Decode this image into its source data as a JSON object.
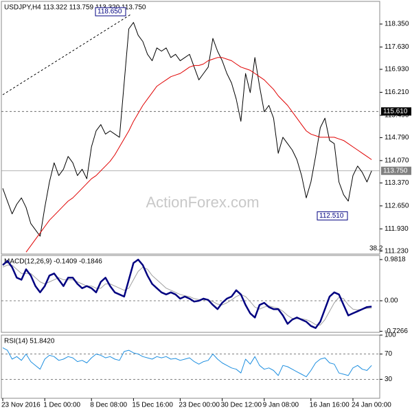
{
  "watermark": "ActionForex.com",
  "chart_data": [
    {
      "type": "line",
      "title": "USDJPY,H4 113.322 113.759 113.320 113.750",
      "ylim": [
        111.14,
        119.06
      ],
      "yticks": [
        {
          "value": 118.35,
          "label": "118.350"
        },
        {
          "value": 117.63,
          "label": "117.630"
        },
        {
          "value": 116.93,
          "label": "116.930"
        },
        {
          "value": 116.21,
          "label": "116.210"
        },
        {
          "value": 115.49,
          "label": "115.490"
        },
        {
          "value": 114.79,
          "label": "114.790"
        },
        {
          "value": 114.07,
          "label": "114.070"
        },
        {
          "value": 113.37,
          "label": "113.370"
        },
        {
          "value": 112.65,
          "label": "112.650"
        },
        {
          "value": 111.93,
          "label": "111.930"
        },
        {
          "value": 111.23,
          "label": "111.230"
        }
      ],
      "levels": [
        {
          "value": 115.61,
          "label": "115.610",
          "color": "#000000"
        },
        {
          "value": 113.75,
          "label": "113.750",
          "color": "#808080"
        }
      ],
      "annotations": [
        {
          "value": 118.65,
          "label": "118.650"
        },
        {
          "value": 112.51,
          "label": "112.510"
        }
      ],
      "fib_label": "38.2",
      "series": [
        {
          "name": "USDJPY",
          "color": "#000000",
          "values": [
            113.2,
            112.8,
            112.4,
            112.7,
            112.9,
            112.6,
            112.1,
            111.9,
            111.7,
            112.6,
            113.4,
            114.0,
            113.6,
            113.8,
            114.2,
            114.0,
            113.6,
            113.8,
            113.5,
            114.5,
            115.0,
            115.2,
            114.9,
            115.0,
            114.9,
            114.8,
            116.5,
            118.2,
            118.4,
            118.0,
            117.8,
            117.4,
            117.2,
            117.6,
            117.5,
            117.6,
            117.3,
            117.4,
            117.2,
            117.3,
            117.4,
            117.0,
            116.6,
            116.8,
            117.0,
            117.9,
            117.5,
            117.2,
            116.8,
            116.5,
            116.0,
            115.3,
            116.8,
            116.2,
            117.3,
            116.4,
            115.6,
            115.8,
            115.4,
            114.3,
            114.8,
            114.6,
            114.4,
            114.1,
            113.6,
            112.9,
            113.4,
            114.2,
            115.1,
            115.4,
            114.7,
            114.6,
            113.4,
            113.0,
            112.8,
            113.6,
            113.9,
            113.7,
            113.4,
            113.75
          ]
        },
        {
          "name": "MA",
          "color": "#e00000",
          "values": [
            null,
            null,
            null,
            null,
            null,
            111.2,
            111.4,
            111.6,
            111.8,
            112.0,
            112.2,
            112.35,
            112.5,
            112.65,
            112.8,
            112.9,
            113.05,
            113.2,
            113.35,
            113.5,
            113.6,
            113.75,
            113.9,
            114.05,
            114.25,
            114.5,
            114.75,
            115.0,
            115.3,
            115.55,
            115.8,
            116.0,
            116.2,
            116.4,
            116.5,
            116.6,
            116.7,
            116.75,
            116.8,
            116.9,
            117.0,
            117.05,
            117.05,
            117.1,
            117.2,
            117.25,
            117.3,
            117.3,
            117.25,
            117.2,
            117.1,
            117.0,
            116.95,
            116.9,
            116.8,
            116.7,
            116.6,
            116.45,
            116.3,
            116.1,
            115.95,
            115.8,
            115.6,
            115.4,
            115.2,
            115.0,
            114.9,
            114.85,
            114.8,
            114.8,
            114.8,
            114.8,
            114.75,
            114.7,
            114.6,
            114.5,
            114.4,
            114.3,
            114.2,
            114.1
          ]
        }
      ]
    },
    {
      "type": "line",
      "title": "MACD(12,26,9) -0.1409 -0.1846",
      "ylim": [
        -0.753,
        1.08
      ],
      "yticks": [
        0.9818,
        {
          "value": 0,
          "label": "0.00"
        },
        -0.7266
      ],
      "levels": [
        0
      ],
      "series": [
        {
          "name": "Signal",
          "color": "#a0a0a0",
          "values": [
            0.8,
            0.85,
            0.85,
            0.75,
            0.65,
            0.65,
            0.65,
            0.55,
            0.45,
            0.4,
            0.45,
            0.5,
            0.55,
            0.5,
            0.5,
            0.5,
            0.45,
            0.4,
            0.35,
            0.35,
            0.3,
            0.3,
            0.4,
            0.4,
            0.35,
            0.3,
            0.25,
            0.3,
            0.5,
            0.7,
            0.8,
            0.75,
            0.6,
            0.5,
            0.4,
            0.3,
            0.25,
            0.2,
            0.15,
            0.12,
            0.1,
            0.05,
            0.03,
            0.02,
            0.02,
            -0.02,
            -0.08,
            -0.1,
            -0.05,
            0.02,
            0.1,
            0.15,
            0.1,
            -0.02,
            -0.15,
            -0.2,
            -0.15,
            -0.12,
            -0.15,
            -0.18,
            -0.25,
            -0.35,
            -0.42,
            -0.43,
            -0.43,
            -0.45,
            -0.5,
            -0.57,
            -0.58,
            -0.45,
            -0.25,
            -0.05,
            0.08,
            0.05,
            -0.1,
            -0.2,
            -0.22,
            -0.2,
            -0.18,
            -0.18
          ]
        },
        {
          "name": "MACD",
          "color": "#000080",
          "values": [
            0.85,
            0.95,
            0.8,
            0.55,
            0.5,
            0.75,
            0.6,
            0.35,
            0.2,
            0.35,
            0.6,
            0.65,
            0.5,
            0.35,
            0.55,
            0.55,
            0.4,
            0.3,
            0.35,
            0.3,
            0.2,
            0.45,
            0.55,
            0.35,
            0.2,
            0.15,
            0.1,
            0.5,
            0.9,
            0.98,
            0.85,
            0.6,
            0.4,
            0.3,
            0.2,
            0.15,
            0.2,
            0.15,
            0.05,
            0.1,
            0.05,
            -0.02,
            0.0,
            0.05,
            0.02,
            -0.1,
            -0.2,
            -0.05,
            0.05,
            0.1,
            0.25,
            0.15,
            -0.1,
            -0.3,
            -0.4,
            -0.1,
            -0.05,
            -0.15,
            -0.2,
            -0.2,
            -0.35,
            -0.55,
            -0.45,
            -0.4,
            -0.45,
            -0.5,
            -0.6,
            -0.65,
            -0.5,
            -0.2,
            0.1,
            0.2,
            0.15,
            -0.1,
            -0.35,
            -0.3,
            -0.25,
            -0.2,
            -0.15,
            -0.14
          ]
        }
      ]
    },
    {
      "type": "line",
      "title": "RSI(14) 51.8420",
      "ylim": [
        0,
        100
      ],
      "yticks": [
        100,
        70,
        30
      ],
      "levels": [
        70,
        30
      ],
      "categories": [
        "23 Nov 2016",
        null,
        null,
        null,
        null,
        null,
        null,
        null,
        null,
        "1 Dec 00:00",
        null,
        null,
        null,
        null,
        null,
        null,
        null,
        null,
        null,
        "8 Dec 08:00",
        null,
        null,
        null,
        null,
        null,
        null,
        null,
        null,
        "15 Dec 16:00",
        null,
        null,
        null,
        null,
        null,
        null,
        null,
        null,
        null,
        "23 Dec 00:00",
        null,
        null,
        null,
        null,
        null,
        null,
        null,
        null,
        "30 Dec 12:00",
        null,
        null,
        null,
        null,
        null,
        null,
        null,
        null,
        "9 Jan 08:00",
        null,
        null,
        null,
        null,
        null,
        null,
        null,
        null,
        null,
        "16 Jan 16:00",
        null,
        null,
        null,
        null,
        null,
        null,
        null,
        null,
        "24 Jan 00:00",
        null,
        null,
        null,
        null
      ],
      "series": [
        {
          "name": "RSI",
          "color": "#1e8fe0",
          "values": [
            80,
            76,
            62,
            66,
            60,
            70,
            58,
            52,
            46,
            62,
            68,
            66,
            60,
            62,
            66,
            64,
            58,
            60,
            56,
            64,
            70,
            68,
            64,
            66,
            62,
            60,
            74,
            76,
            72,
            70,
            66,
            64,
            62,
            66,
            64,
            66,
            62,
            63,
            60,
            62,
            64,
            58,
            54,
            58,
            60,
            70,
            62,
            56,
            52,
            48,
            46,
            40,
            62,
            54,
            66,
            52,
            46,
            48,
            44,
            36,
            52,
            50,
            46,
            42,
            38,
            34,
            44,
            56,
            62,
            64,
            56,
            54,
            40,
            38,
            36,
            48,
            52,
            46,
            44,
            52
          ]
        }
      ]
    }
  ]
}
